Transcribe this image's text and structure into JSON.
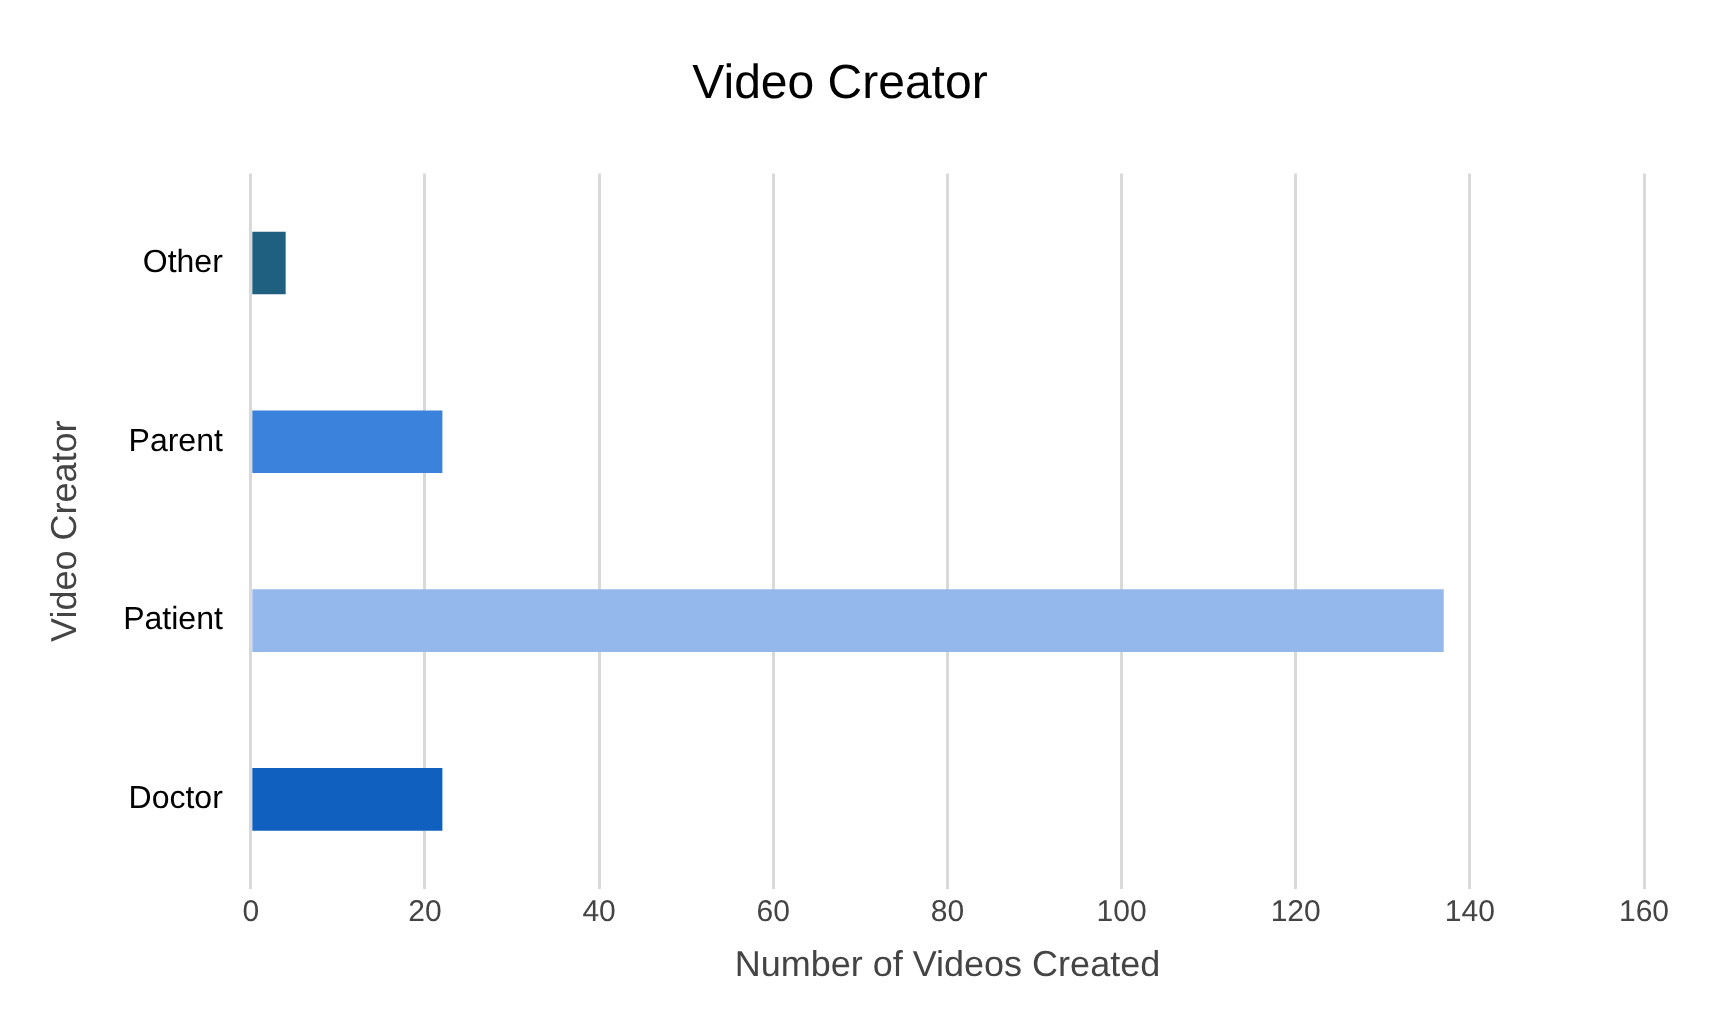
{
  "chart_data": {
    "type": "bar",
    "orientation": "horizontal",
    "title": "Video Creator",
    "xlabel": "Number of Videos Created",
    "ylabel": "Video Creator",
    "categories": [
      "Other",
      "Parent",
      "Patient",
      "Doctor"
    ],
    "values": [
      4,
      22,
      137,
      22
    ],
    "colors": [
      "#1f5f80",
      "#3a82db",
      "#94b8ec",
      "#1060c0"
    ],
    "xlim": [
      0,
      160
    ],
    "xticks": [
      0,
      20,
      40,
      60,
      80,
      100,
      120,
      140,
      160
    ],
    "grid": "x",
    "legend": false
  }
}
